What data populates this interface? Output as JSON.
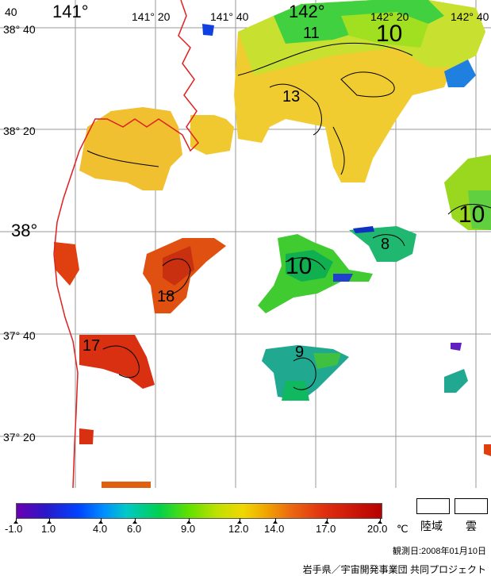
{
  "map": {
    "lon_labels": [
      "141°",
      "141° 20",
      "141° 40",
      "142°",
      "142° 20",
      "142° 40"
    ],
    "lat_labels": [
      "38° 40",
      "38° 20",
      "38°",
      "37° 40",
      "37° 20"
    ],
    "corner_label": "40",
    "isotherm_labels": [
      "11",
      "10",
      "13",
      "10",
      "8",
      "10",
      "18",
      "17",
      "9"
    ]
  },
  "legend": {
    "ticks": [
      "-1.0",
      "1.0",
      "4.0",
      "6.0",
      "9.0",
      "12.0",
      "14.0",
      "17.0",
      "20.0"
    ],
    "unit": "℃",
    "land_label": "陸域",
    "cloud_label": "雲"
  },
  "observation_date": "観測日:2008年01月10日",
  "credit": "岩手県／宇宙開発事業団 共同プロジェクト"
}
